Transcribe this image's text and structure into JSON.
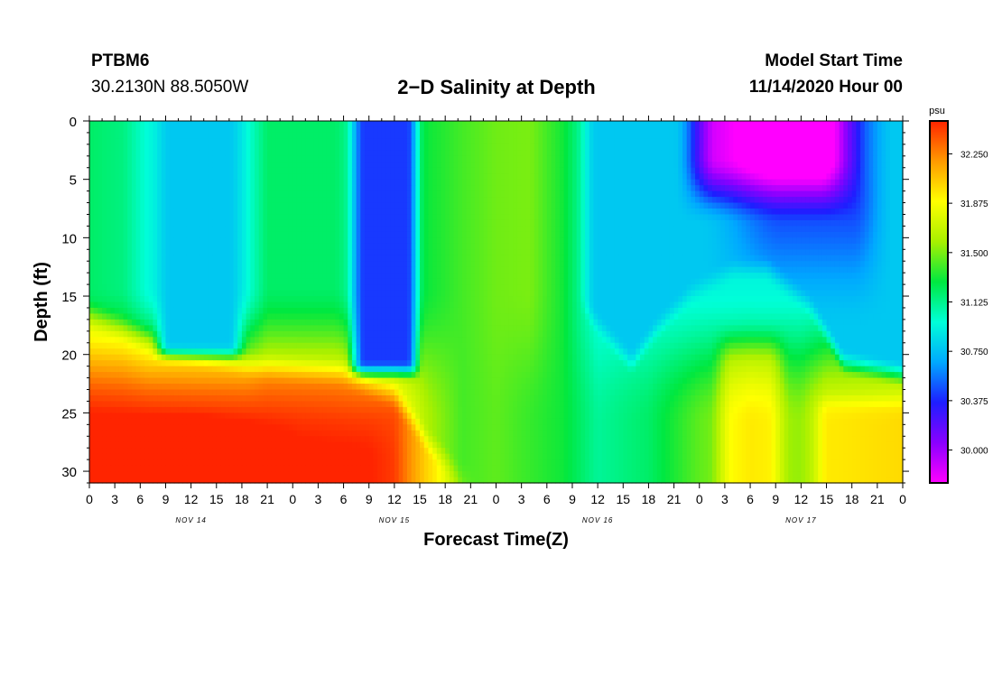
{
  "header": {
    "station": "PTBM6",
    "coordinates": "30.2130N 88.5050W",
    "title": "2−D Salinity at Depth",
    "start_label": "Model Start Time",
    "start_value": "11/14/2020 Hour 00"
  },
  "chart_data": {
    "type": "heatmap",
    "title": "2−D Salinity at Depth",
    "xlabel": "Forecast Time(Z)",
    "ylabel": "Depth (ft)",
    "x_tick_labels": [
      "0",
      "3",
      "6",
      "9",
      "12",
      "15",
      "18",
      "21",
      "0",
      "3",
      "6",
      "9",
      "12",
      "15",
      "18",
      "21",
      "0",
      "3",
      "6",
      "9",
      "12",
      "15",
      "18",
      "21",
      "0",
      "3",
      "6",
      "9",
      "12",
      "15",
      "18",
      "21",
      "0"
    ],
    "x_range_hours": [
      0,
      96
    ],
    "day_labels": [
      "NOV 14",
      "NOV 15",
      "NOV 16",
      "NOV 17"
    ],
    "y_ticks": [
      0,
      5,
      10,
      15,
      20,
      25,
      30
    ],
    "y_range_ft": [
      0,
      31
    ],
    "y_inverted": true,
    "colorbar": {
      "unit": "psu",
      "tick_labels": [
        "32.250",
        "31.875",
        "31.500",
        "31.125",
        "30.750",
        "30.375",
        "30.000"
      ],
      "range": [
        29.75,
        32.5
      ],
      "colors": [
        "#ff00ff",
        "#8a00ff",
        "#1e1eff",
        "#00a8ff",
        "#00ffd8",
        "#00e840",
        "#a8f000",
        "#ffff00",
        "#ff9a00",
        "#ff2400"
      ]
    },
    "features": [
      {
        "name": "low-salinity pool",
        "hours": [
          8,
          18
        ],
        "depth_ft": [
          0,
          21
        ],
        "min_psu": 30.75
      },
      {
        "name": "low-salinity pool",
        "hours": [
          31,
          40
        ],
        "depth_ft": [
          0,
          22
        ],
        "min_psu": 30.4
      },
      {
        "name": "low-salinity pool",
        "hours": [
          58,
          96
        ],
        "depth_ft": [
          0,
          22
        ],
        "min_psu": 29.8
      },
      {
        "name": "high-salinity bottom layer",
        "hours": [
          0,
          38
        ],
        "depth_ft": [
          22,
          31
        ],
        "max_psu": 32.3
      },
      {
        "name": "high-salinity bottom layer",
        "hours": [
          85,
          96
        ],
        "depth_ft": [
          24,
          31
        ],
        "max_psu": 31.9
      }
    ]
  }
}
